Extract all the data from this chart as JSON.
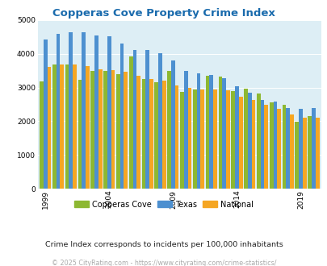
{
  "title": "Copperas Cove Property Crime Index",
  "title_color": "#1a6bad",
  "years": [
    1999,
    2000,
    2001,
    2002,
    2003,
    2004,
    2005,
    2006,
    2007,
    2008,
    2009,
    2010,
    2011,
    2012,
    2013,
    2014,
    2015,
    2016,
    2017,
    2018,
    2019,
    2020
  ],
  "copperas_cove": [
    3170,
    3680,
    3680,
    3240,
    3500,
    3500,
    3390,
    3910,
    3260,
    3160,
    3500,
    2880,
    2940,
    3350,
    3330,
    2900,
    2960,
    2820,
    2560,
    2490,
    1980,
    2160
  ],
  "texas": [
    4420,
    4590,
    4630,
    4630,
    4530,
    4520,
    4310,
    4100,
    4110,
    4020,
    3810,
    3490,
    3410,
    3370,
    3270,
    3040,
    2840,
    2640,
    2580,
    2400,
    2380,
    2390
  ],
  "national": [
    3600,
    3670,
    3670,
    3640,
    3530,
    3520,
    3460,
    3340,
    3250,
    3210,
    3060,
    2990,
    2950,
    2940,
    2910,
    2720,
    2620,
    2500,
    2360,
    2200,
    2100,
    2100
  ],
  "color_cc": "#8db832",
  "color_tx": "#4d90d0",
  "color_nat": "#f5a623",
  "bg_color": "#ddeef5",
  "ylim": [
    0,
    5000
  ],
  "yticks": [
    0,
    1000,
    2000,
    3000,
    4000,
    5000
  ],
  "xtick_years": [
    1999,
    2004,
    2009,
    2014,
    2019
  ],
  "legend_labels": [
    "Copperas Cove",
    "Texas",
    "National"
  ],
  "footnote1": "Crime Index corresponds to incidents per 100,000 inhabitants",
  "footnote2": "© 2025 CityRating.com - https://www.cityrating.com/crime-statistics/",
  "footnote1_color": "#222222",
  "footnote2_color": "#aaaaaa"
}
